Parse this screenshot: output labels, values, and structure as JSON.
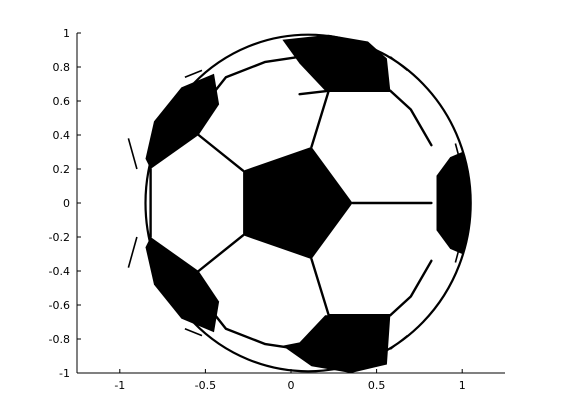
{
  "chart_data": {
    "type": "surface",
    "subject": "soccer-ball",
    "title": "",
    "xlabel": "",
    "ylabel": "",
    "xlim": [
      -1.25,
      1.25
    ],
    "ylim": [
      -1,
      1
    ],
    "xticks": [
      {
        "value": -1,
        "label": "-1"
      },
      {
        "value": -0.5,
        "label": "-0.5"
      },
      {
        "value": 0,
        "label": "0"
      },
      {
        "value": 0.5,
        "label": "0.5"
      },
      {
        "value": 1,
        "label": "1"
      }
    ],
    "yticks": [
      {
        "value": 1,
        "label": "1"
      },
      {
        "value": 0.8,
        "label": "0.8"
      },
      {
        "value": 0.6,
        "label": "0.6"
      },
      {
        "value": 0.4,
        "label": "0.4"
      },
      {
        "value": 0.2,
        "label": "0.2"
      },
      {
        "value": 0,
        "label": "0"
      },
      {
        "value": -0.2,
        "label": "-0.2"
      },
      {
        "value": -0.4,
        "label": "-0.4"
      },
      {
        "value": -0.6,
        "label": "-0.6"
      },
      {
        "value": -0.8,
        "label": "-0.8"
      },
      {
        "value": -1,
        "label": "-1"
      }
    ],
    "grid": false,
    "legend": "none",
    "colors": {
      "patch": "#000000",
      "face": "#ffffff",
      "axes": "#000000"
    },
    "black_patches": [
      {
        "name": "center",
        "vertices": [
          [
            -0.28,
            0.19
          ],
          [
            0.12,
            0.33
          ],
          [
            0.36,
            0
          ],
          [
            0.12,
            -0.33
          ],
          [
            -0.28,
            -0.19
          ]
        ]
      },
      {
        "name": "top",
        "vertices": [
          [
            -0.05,
            0.96
          ],
          [
            0.22,
            0.99
          ],
          [
            0.45,
            0.95
          ],
          [
            0.56,
            0.85
          ],
          [
            0.58,
            0.66
          ],
          [
            0.2,
            0.66
          ],
          [
            0.05,
            0.82
          ]
        ]
      },
      {
        "name": "bottom",
        "vertices": [
          [
            -0.05,
            -0.84
          ],
          [
            0.12,
            -0.96
          ],
          [
            0.35,
            -1.0
          ],
          [
            0.56,
            -0.95
          ],
          [
            0.58,
            -0.66
          ],
          [
            0.2,
            -0.66
          ],
          [
            0.05,
            -0.82
          ]
        ]
      },
      {
        "name": "upper-left",
        "vertices": [
          [
            -0.85,
            0.26
          ],
          [
            -0.8,
            0.48
          ],
          [
            -0.64,
            0.68
          ],
          [
            -0.45,
            0.76
          ],
          [
            -0.42,
            0.58
          ],
          [
            -0.54,
            0.4
          ],
          [
            -0.82,
            0.2
          ]
        ]
      },
      {
        "name": "lower-left",
        "vertices": [
          [
            -0.85,
            -0.26
          ],
          [
            -0.8,
            -0.48
          ],
          [
            -0.64,
            -0.68
          ],
          [
            -0.45,
            -0.76
          ],
          [
            -0.42,
            -0.58
          ],
          [
            -0.54,
            -0.4
          ],
          [
            -0.82,
            -0.2
          ]
        ]
      },
      {
        "name": "right",
        "vertices": [
          [
            1.0,
            0.3
          ],
          [
            1.04,
            0.18
          ],
          [
            1.05,
            0
          ],
          [
            1.04,
            -0.18
          ],
          [
            1.0,
            -0.3
          ],
          [
            0.93,
            -0.27
          ],
          [
            0.85,
            -0.16
          ],
          [
            0.85,
            0.16
          ],
          [
            0.93,
            0.27
          ]
        ]
      }
    ],
    "seams": [
      [
        [
          -0.49,
          0.6
        ],
        [
          -0.38,
          0.74
        ],
        [
          -0.15,
          0.83
        ],
        [
          0.05,
          0.86
        ]
      ],
      [
        [
          0.05,
          0.64
        ],
        [
          0.22,
          0.66
        ]
      ],
      [
        [
          0.22,
          0.66
        ],
        [
          0.12,
          0.33
        ]
      ],
      [
        [
          0.58,
          0.66
        ],
        [
          0.7,
          0.55
        ],
        [
          0.82,
          0.34
        ]
      ],
      [
        [
          0.58,
          0.66
        ],
        [
          0.22,
          0.66
        ]
      ],
      [
        [
          0.36,
          0
        ],
        [
          0.82,
          0
        ]
      ],
      [
        [
          0.58,
          -0.66
        ],
        [
          0.7,
          -0.55
        ],
        [
          0.82,
          -0.34
        ]
      ],
      [
        [
          0.58,
          -0.66
        ],
        [
          0.22,
          -0.66
        ]
      ],
      [
        [
          0.22,
          -0.66
        ],
        [
          0.12,
          -0.33
        ]
      ],
      [
        [
          -0.28,
          0.19
        ],
        [
          -0.54,
          0.4
        ]
      ],
      [
        [
          -0.28,
          -0.19
        ],
        [
          -0.54,
          -0.4
        ]
      ],
      [
        [
          -0.82,
          0.2
        ],
        [
          -0.82,
          -0.2
        ]
      ],
      [
        [
          -0.49,
          -0.6
        ],
        [
          -0.38,
          -0.74
        ],
        [
          -0.15,
          -0.83
        ],
        [
          0.05,
          -0.86
        ]
      ]
    ],
    "edge_flicks": [
      [
        [
          -0.95,
          0.38
        ],
        [
          -0.9,
          0.2
        ]
      ],
      [
        [
          -0.62,
          0.74
        ],
        [
          -0.52,
          0.78
        ]
      ],
      [
        [
          0.58,
          0.86
        ],
        [
          0.68,
          0.78
        ]
      ],
      [
        [
          0.96,
          0.35
        ],
        [
          1.0,
          0.2
        ]
      ],
      [
        [
          -0.95,
          -0.38
        ],
        [
          -0.9,
          -0.2
        ]
      ],
      [
        [
          -0.62,
          -0.74
        ],
        [
          -0.52,
          -0.78
        ]
      ],
      [
        [
          0.58,
          -0.86
        ],
        [
          0.68,
          -0.78
        ]
      ],
      [
        [
          0.96,
          -0.35
        ],
        [
          1.0,
          -0.2
        ]
      ]
    ]
  }
}
